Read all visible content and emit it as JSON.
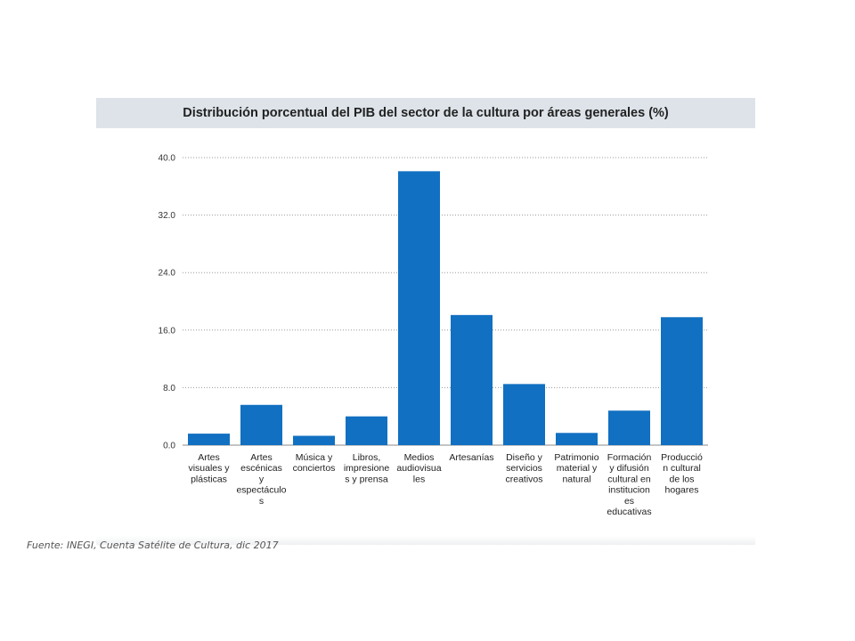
{
  "chart_data": {
    "type": "bar",
    "title": "Distribución porcentual del PIB del sector de la cultura por áreas generales (%)",
    "categories": [
      [
        "Artes",
        "visuales y",
        "plásticas"
      ],
      [
        "Artes",
        "escénicas",
        "y",
        "espectáculo",
        "s"
      ],
      [
        "Música y",
        "conciertos"
      ],
      [
        "Libros,",
        "impresione",
        "s y prensa"
      ],
      [
        "Medios",
        "audiovisua",
        "les"
      ],
      [
        "Artesanías"
      ],
      [
        "Diseño y",
        "servicios",
        "creativos"
      ],
      [
        "Patrimonio",
        "material y",
        "natural"
      ],
      [
        "Formación",
        "y difusión",
        "cultural en",
        "institucion",
        "es",
        "educativas"
      ],
      [
        "Producció",
        "n cultural",
        "de los",
        "hogares"
      ]
    ],
    "values": [
      1.6,
      5.6,
      1.3,
      4.0,
      38.1,
      18.1,
      8.5,
      1.7,
      4.8,
      17.8
    ],
    "ylim": [
      0,
      40
    ],
    "yticks": [
      "0.0",
      "8.0",
      "16.0",
      "24.0",
      "32.0",
      "40.0"
    ],
    "ytick_values": [
      0,
      8,
      16,
      24,
      32,
      40
    ],
    "grid": true,
    "bar_color": "#1170c1"
  },
  "source_note": "Fuente: INEGI, Cuenta Satélite de Cultura, dic 2017"
}
